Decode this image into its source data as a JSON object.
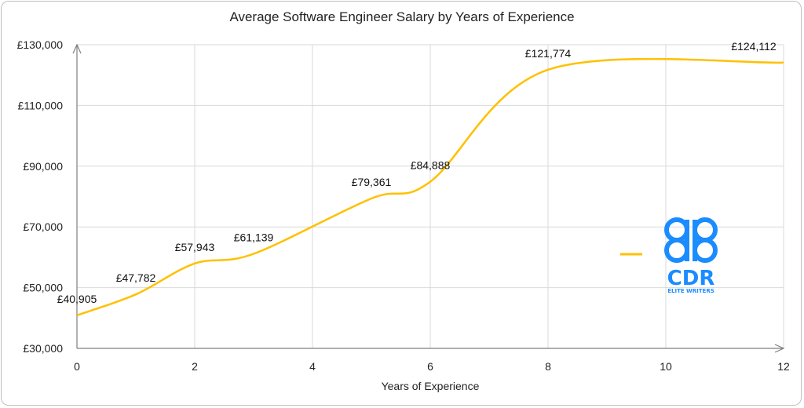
{
  "chart_data": {
    "type": "line",
    "title": "Average Software Engineer Salary by Years of Experience",
    "xlabel": "Years of Experience",
    "ylabel": "",
    "xlim": [
      0,
      12
    ],
    "ylim": [
      30000,
      130000
    ],
    "xticks": [
      0,
      2,
      4,
      6,
      8,
      10,
      12
    ],
    "yticks": [
      30000,
      50000,
      70000,
      90000,
      110000,
      130000
    ],
    "ytick_labels": [
      "£30,000",
      "£50,000",
      "£70,000",
      "£90,000",
      "£110,000",
      "£130,000"
    ],
    "grid": true,
    "smooth": true,
    "series": [
      {
        "color": "#ffc000",
        "points": [
          {
            "x": 0,
            "y": 40905,
            "label": "£40,905"
          },
          {
            "x": 1,
            "y": 47782,
            "label": "£47,782"
          },
          {
            "x": 2,
            "y": 57943,
            "label": "£57,943"
          },
          {
            "x": 3,
            "y": 61139,
            "label": "£61,139"
          },
          {
            "x": 5,
            "y": 79361,
            "label": "£79,361"
          },
          {
            "x": 6,
            "y": 84888,
            "label": "£84,888"
          },
          {
            "x": 8,
            "y": 121774,
            "label": "£121,774"
          },
          {
            "x": 12,
            "y": 124112,
            "label": "£124,112"
          }
        ]
      }
    ],
    "legend": {
      "position": "right"
    }
  },
  "logo": {
    "main": "CDR",
    "sub": "ELITE WRITERS",
    "color": "#1a8cff"
  }
}
